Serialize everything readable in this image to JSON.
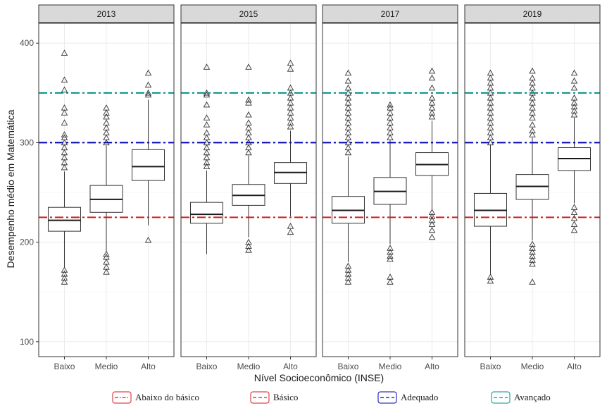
{
  "chart_data": {
    "type": "boxplot",
    "xlabel": "Nível Socioeconômico (INSE)",
    "ylabel": "Desempenho médio em Matemática",
    "ylim": [
      85,
      420
    ],
    "yticks": [
      100,
      200,
      300,
      400
    ],
    "categories": [
      "Baixo",
      "Medio",
      "Alto"
    ],
    "grid": true,
    "legend_position": "bottom",
    "reference_lines": [
      {
        "value": 225,
        "color": "#d7191c"
      },
      {
        "value": 300,
        "color": "#0000b3"
      },
      {
        "value": 350,
        "color": "#00918a"
      }
    ],
    "legend": [
      {
        "label": "Abaixo do básico",
        "color": "#d7191c",
        "dash": "dashdot"
      },
      {
        "label": "Básico",
        "color": "#d7191c",
        "dash": "dash"
      },
      {
        "label": "Adequado",
        "color": "#0000b3",
        "dash": "dash"
      },
      {
        "label": "Avançado",
        "color": "#00918a",
        "dash": "dash"
      }
    ],
    "panels": [
      {
        "year": "2013",
        "boxes": [
          {
            "category": "Baixo",
            "whisker_low": 175,
            "q1": 211,
            "median": 222,
            "q3": 235,
            "whisker_high": 271,
            "outliers_high": [
              275,
              280,
              285,
              290,
              295,
              300,
              305,
              308,
              320,
              330,
              335,
              353,
              363,
              390
            ],
            "outliers_low": [
              160,
              164,
              168,
              172
            ]
          },
          {
            "category": "Medio",
            "whisker_low": 190,
            "q1": 230,
            "median": 243,
            "q3": 257,
            "whisker_high": 297,
            "outliers_high": [
              300,
              305,
              310,
              315,
              320,
              326,
              330,
              335
            ],
            "outliers_low": [
              170,
              175,
              180,
              185,
              188
            ]
          },
          {
            "category": "Alto",
            "whisker_low": 217,
            "q1": 262,
            "median": 276,
            "q3": 293,
            "whisker_high": 343,
            "outliers_high": [
              348,
              350,
              358,
              370
            ],
            "outliers_low": [
              202
            ]
          }
        ]
      },
      {
        "year": "2015",
        "boxes": [
          {
            "category": "Baixo",
            "whisker_low": 188,
            "q1": 219,
            "median": 228,
            "q3": 240,
            "whisker_high": 272,
            "outliers_high": [
              276,
              280,
              285,
              290,
              295,
              300,
              305,
              310,
              318,
              325,
              338,
              348,
              350,
              376
            ],
            "outliers_low": []
          },
          {
            "category": "Medio",
            "whisker_low": 205,
            "q1": 237,
            "median": 247,
            "q3": 258,
            "whisker_high": 287,
            "outliers_high": [
              290,
              295,
              300,
              305,
              310,
              315,
              320,
              328,
              340,
              343,
              376
            ],
            "outliers_low": [
              192,
              196,
              200
            ]
          },
          {
            "category": "Alto",
            "whisker_low": 226,
            "q1": 259,
            "median": 270,
            "q3": 280,
            "whisker_high": 312,
            "outliers_high": [
              316,
              320,
              325,
              330,
              335,
              340,
              345,
              350,
              355,
              374,
              380
            ],
            "outliers_low": [
              210,
              216
            ]
          }
        ]
      },
      {
        "year": "2017",
        "boxes": [
          {
            "category": "Baixo",
            "whisker_low": 180,
            "q1": 219,
            "median": 232,
            "q3": 246,
            "whisker_high": 286,
            "outliers_high": [
              290,
              295,
              300,
              305,
              310,
              315,
              320,
              325,
              330,
              335,
              340,
              345,
              350,
              355,
              362,
              370
            ],
            "outliers_low": [
              160,
              164,
              168,
              172,
              176
            ]
          },
          {
            "category": "Medio",
            "whisker_low": 198,
            "q1": 238,
            "median": 251,
            "q3": 265,
            "whisker_high": 303,
            "outliers_high": [
              305,
              310,
              315,
              320,
              325,
              330,
              335,
              338
            ],
            "outliers_low": [
              160,
              165,
              183,
              186,
              190,
              194
            ]
          },
          {
            "category": "Alto",
            "whisker_low": 232,
            "q1": 267,
            "median": 278,
            "q3": 290,
            "whisker_high": 322,
            "outliers_high": [
              326,
              330,
              335,
              340,
              345,
              355,
              365,
              372
            ],
            "outliers_low": [
              205,
              212,
              218,
              222,
              226,
              230
            ]
          }
        ]
      },
      {
        "year": "2019",
        "boxes": [
          {
            "category": "Baixo",
            "whisker_low": 168,
            "q1": 216,
            "median": 232,
            "q3": 249,
            "whisker_high": 298,
            "outliers_high": [
              300,
              305,
              310,
              315,
              320,
              325,
              330,
              335,
              340,
              345,
              350,
              355,
              360,
              365,
              370
            ],
            "outliers_low": [
              161,
              165
            ]
          },
          {
            "category": "Medio",
            "whisker_low": 202,
            "q1": 243,
            "median": 256,
            "q3": 268,
            "whisker_high": 305,
            "outliers_high": [
              308,
              312,
              318,
              325,
              330,
              335,
              340,
              345,
              350,
              355,
              360,
              365,
              372
            ],
            "outliers_low": [
              160,
              178,
              182,
              186,
              190,
              194,
              198
            ]
          },
          {
            "category": "Alto",
            "whisker_low": 239,
            "q1": 272,
            "median": 284,
            "q3": 295,
            "whisker_high": 325,
            "outliers_high": [
              328,
              332,
              336,
              340,
              345,
              355,
              362,
              370
            ],
            "outliers_low": [
              212,
              218,
              224,
              230,
              235
            ]
          }
        ]
      }
    ]
  }
}
